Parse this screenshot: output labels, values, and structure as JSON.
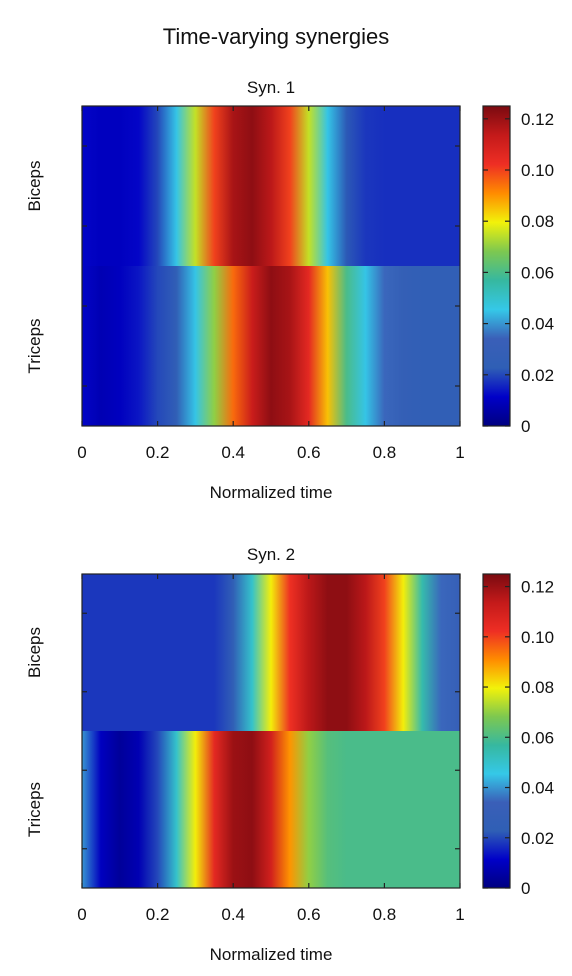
{
  "title": "Time-varying  synergies",
  "colormap": [
    "#000080",
    "#0000c8",
    "#2f5fb5",
    "#3a5fb8",
    "#35c8e8",
    "#36b8a0",
    "#7dc850",
    "#f2f20a",
    "#ff8c00",
    "#ee2e24",
    "#c41a1a",
    "#7a0a10"
  ],
  "chart_data": [
    {
      "type": "heatmap",
      "title": "Syn. 1",
      "xlabel": "Normalized time",
      "ylabel": "",
      "rows": [
        "Biceps",
        "Triceps"
      ],
      "x_ticks": [
        "0",
        "0.2",
        "0.4",
        "0.6",
        "0.8",
        "1"
      ],
      "xlim": [
        0,
        1
      ],
      "colorbar": {
        "ticks": [
          "0",
          "0.02",
          "0.04",
          "0.06",
          "0.08",
          "0.10",
          "0.12"
        ],
        "range": [
          0,
          0.125
        ]
      },
      "x": [
        0.0,
        0.05,
        0.1,
        0.15,
        0.2,
        0.25,
        0.3,
        0.35,
        0.4,
        0.45,
        0.5,
        0.55,
        0.6,
        0.65,
        0.7,
        0.75,
        0.8,
        0.85,
        0.9,
        0.95,
        1.0
      ],
      "series": [
        {
          "name": "Biceps",
          "values": [
            0.012,
            0.01,
            0.01,
            0.012,
            0.02,
            0.045,
            0.075,
            0.1,
            0.118,
            0.122,
            0.115,
            0.1,
            0.075,
            0.045,
            0.022,
            0.018,
            0.017,
            0.017,
            0.017,
            0.017,
            0.017
          ]
        },
        {
          "name": "Triceps",
          "values": [
            0.012,
            0.008,
            0.01,
            0.014,
            0.02,
            0.025,
            0.045,
            0.07,
            0.095,
            0.112,
            0.122,
            0.118,
            0.105,
            0.085,
            0.06,
            0.045,
            0.035,
            0.028,
            0.025,
            0.025,
            0.025
          ]
        }
      ]
    },
    {
      "type": "heatmap",
      "title": "Syn. 2",
      "xlabel": "Normalized time",
      "ylabel": "",
      "rows": [
        "Biceps",
        "Triceps"
      ],
      "x_ticks": [
        "0",
        "0.2",
        "0.4",
        "0.6",
        "0.8",
        "1"
      ],
      "xlim": [
        0,
        1
      ],
      "colorbar": {
        "ticks": [
          "0",
          "0.02",
          "0.04",
          "0.06",
          "0.08",
          "0.10",
          "0.12"
        ],
        "range": [
          0,
          0.125
        ]
      },
      "x": [
        0.0,
        0.05,
        0.1,
        0.15,
        0.2,
        0.25,
        0.3,
        0.35,
        0.4,
        0.45,
        0.5,
        0.55,
        0.6,
        0.65,
        0.7,
        0.75,
        0.8,
        0.85,
        0.9,
        0.95,
        1.0
      ],
      "series": [
        {
          "name": "Biceps",
          "values": [
            0.018,
            0.018,
            0.018,
            0.018,
            0.018,
            0.018,
            0.018,
            0.018,
            0.025,
            0.05,
            0.08,
            0.102,
            0.115,
            0.122,
            0.122,
            0.115,
            0.1,
            0.08,
            0.055,
            0.035,
            0.03
          ]
        },
        {
          "name": "Triceps",
          "values": [
            0.04,
            0.01,
            0.004,
            0.008,
            0.02,
            0.05,
            0.08,
            0.105,
            0.12,
            0.122,
            0.11,
            0.09,
            0.07,
            0.062,
            0.06,
            0.06,
            0.06,
            0.06,
            0.06,
            0.06,
            0.06
          ]
        }
      ]
    }
  ]
}
